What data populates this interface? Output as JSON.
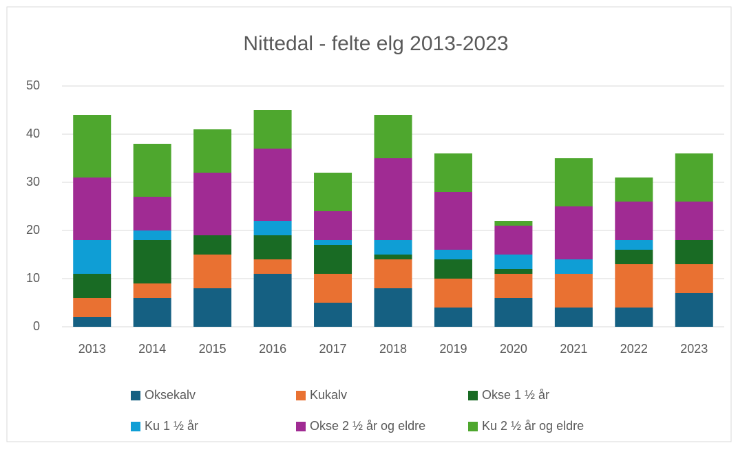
{
  "chart_data": {
    "type": "stacked_bar",
    "title": "Nittedal - felte elg 2013-2023",
    "categories": [
      "2013",
      "2014",
      "2015",
      "2016",
      "2017",
      "2018",
      "2019",
      "2020",
      "2021",
      "2022",
      "2023"
    ],
    "series": [
      {
        "name": "Oksekalv",
        "color": "#156082",
        "values": [
          2,
          6,
          8,
          11,
          5,
          8,
          4,
          6,
          4,
          4,
          7
        ]
      },
      {
        "name": "Kukalv",
        "color": "#e97132",
        "values": [
          4,
          3,
          7,
          3,
          6,
          6,
          6,
          5,
          7,
          9,
          6
        ]
      },
      {
        "name": "Okse 1 ½ år",
        "color": "#196b24",
        "values": [
          5,
          9,
          4,
          5,
          6,
          1,
          4,
          1,
          0,
          3,
          5
        ]
      },
      {
        "name": "Ku 1 ½ år",
        "color": "#0f9ed5",
        "values": [
          7,
          2,
          0,
          3,
          1,
          3,
          2,
          3,
          3,
          2,
          0
        ]
      },
      {
        "name": "Okse 2 ½ år og eldre",
        "color": "#a02b93",
        "values": [
          13,
          7,
          13,
          15,
          6,
          17,
          12,
          6,
          11,
          8,
          8
        ]
      },
      {
        "name": "Ku 2 ½ år og eldre",
        "color": "#4ea72e",
        "values": [
          13,
          11,
          9,
          8,
          8,
          9,
          8,
          1,
          10,
          5,
          10
        ]
      }
    ],
    "ylim": [
      0,
      50
    ],
    "yticks": [
      0,
      10,
      20,
      30,
      40,
      50
    ],
    "grid": true,
    "legend": "bottom"
  }
}
